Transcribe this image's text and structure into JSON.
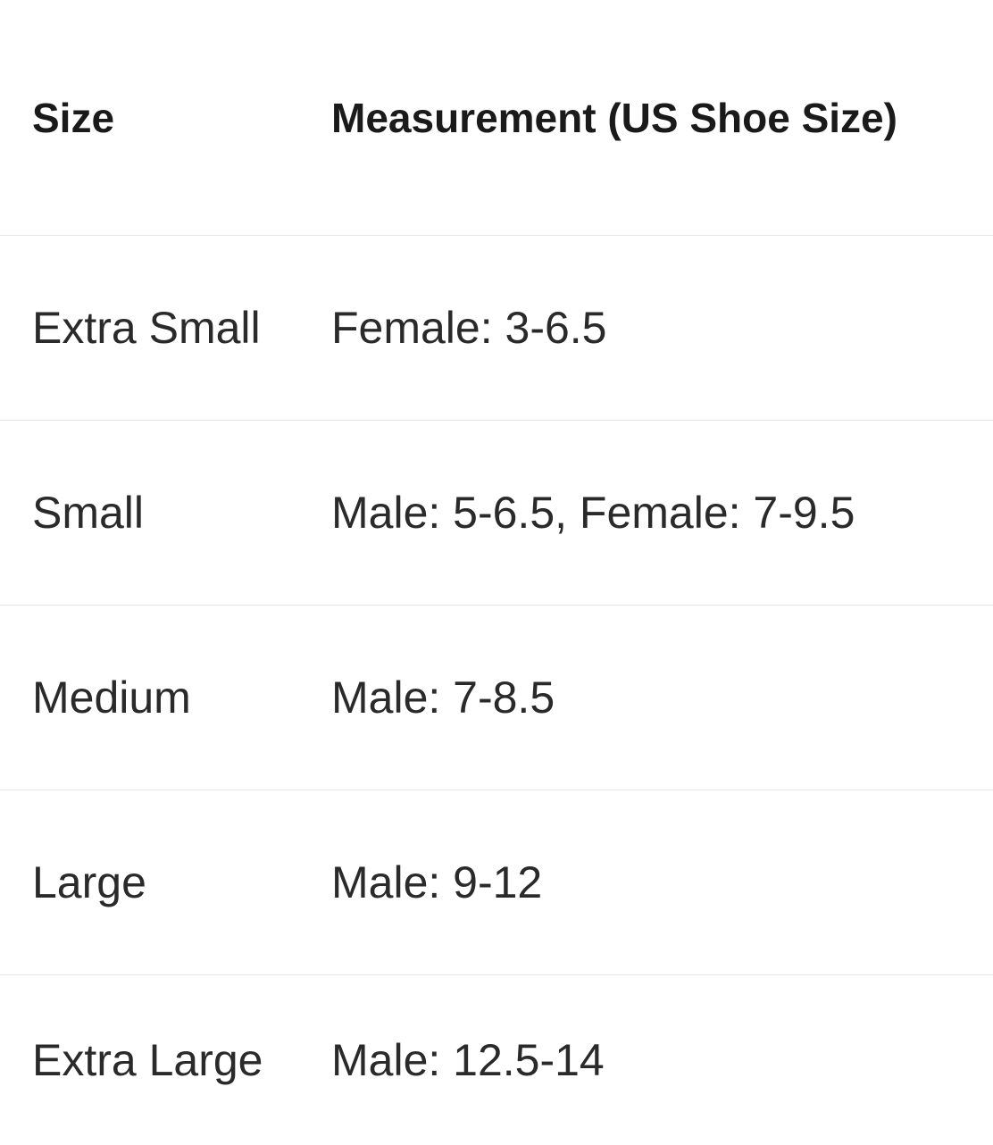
{
  "table": {
    "headers": [
      "Size",
      "Measurement (US Shoe Size)"
    ],
    "rows": [
      [
        "Extra Small",
        "Female: 3-6.5"
      ],
      [
        "Small",
        "Male: 5-6.5, Female: 7-9.5"
      ],
      [
        "Medium",
        "Male: 7-8.5"
      ],
      [
        "Large",
        "Male: 9-12"
      ],
      [
        "Extra Large",
        "Male: 12.5-14"
      ]
    ]
  }
}
